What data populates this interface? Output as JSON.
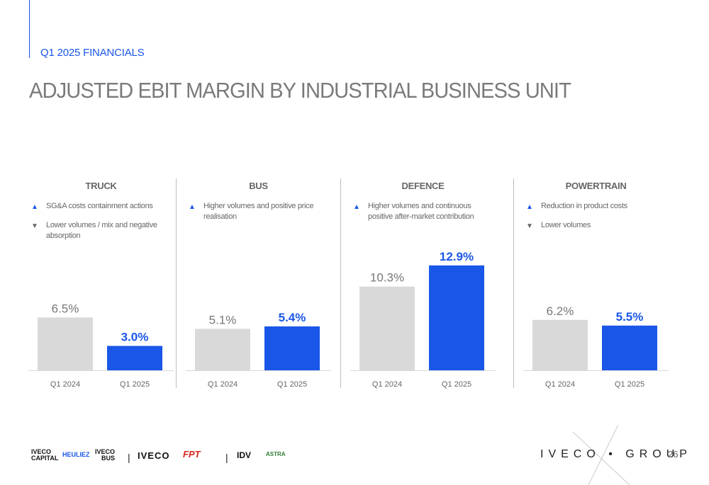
{
  "section": "Q1 2025 FINANCIALS",
  "title": "ADJUSTED EBIT MARGIN BY INDUSTRIAL BUSINESS UNIT",
  "colors": {
    "prior": "#d9d9d9",
    "current": "#1a56e8",
    "text": "#666666"
  },
  "panels": [
    {
      "unit": "TRUCK",
      "bullets": [
        {
          "direction": "up",
          "icon": "triangle-up-icon",
          "text": "SG&A costs containment actions"
        },
        {
          "direction": "down",
          "icon": "triangle-down-icon",
          "text": "Lower volumes / mix and negative absorption"
        }
      ]
    },
    {
      "unit": "BUS",
      "bullets": [
        {
          "direction": "up",
          "icon": "triangle-up-icon",
          "text": "Higher volumes and positive price realisation"
        }
      ]
    },
    {
      "unit": "DEFENCE",
      "bullets": [
        {
          "direction": "up",
          "icon": "triangle-up-icon",
          "text": "Higher volumes and continuous positive after-market contribution"
        }
      ]
    },
    {
      "unit": "POWERTRAIN",
      "bullets": [
        {
          "direction": "up",
          "icon": "triangle-up-icon",
          "text": "Reduction in product costs"
        },
        {
          "direction": "down",
          "icon": "triangle-down-icon",
          "text": "Lower volumes"
        }
      ]
    }
  ],
  "chart_data": [
    {
      "type": "bar",
      "title": "TRUCK",
      "categories": [
        "Q1 2024",
        "Q1 2025"
      ],
      "values": [
        6.5,
        3.0
      ],
      "labels": [
        "6.5%",
        "3.0%"
      ],
      "ylim": [
        0,
        13.5
      ]
    },
    {
      "type": "bar",
      "title": "BUS",
      "categories": [
        "Q1 2024",
        "Q1 2025"
      ],
      "values": [
        5.1,
        5.4
      ],
      "labels": [
        "5.1%",
        "5.4%"
      ],
      "ylim": [
        0,
        13.5
      ]
    },
    {
      "type": "bar",
      "title": "DEFENCE",
      "categories": [
        "Q1 2024",
        "Q1 2025"
      ],
      "values": [
        10.3,
        12.9
      ],
      "labels": [
        "10.3%",
        "12.9%"
      ],
      "ylim": [
        0,
        13.5
      ]
    },
    {
      "type": "bar",
      "title": "POWERTRAIN",
      "categories": [
        "Q1 2024",
        "Q1 2025"
      ],
      "values": [
        6.2,
        5.5
      ],
      "labels": [
        "6.2%",
        "5.5%"
      ],
      "ylim": [
        0,
        13.5
      ]
    }
  ],
  "footer": {
    "logos": [
      "IVECO CAPITAL",
      "HEULIEZ",
      "IVECO BUS",
      "IVECO",
      "FPT",
      "IDV",
      "ASTRA"
    ],
    "group_logo": "IVECO • GROUP",
    "page_number": "26"
  }
}
